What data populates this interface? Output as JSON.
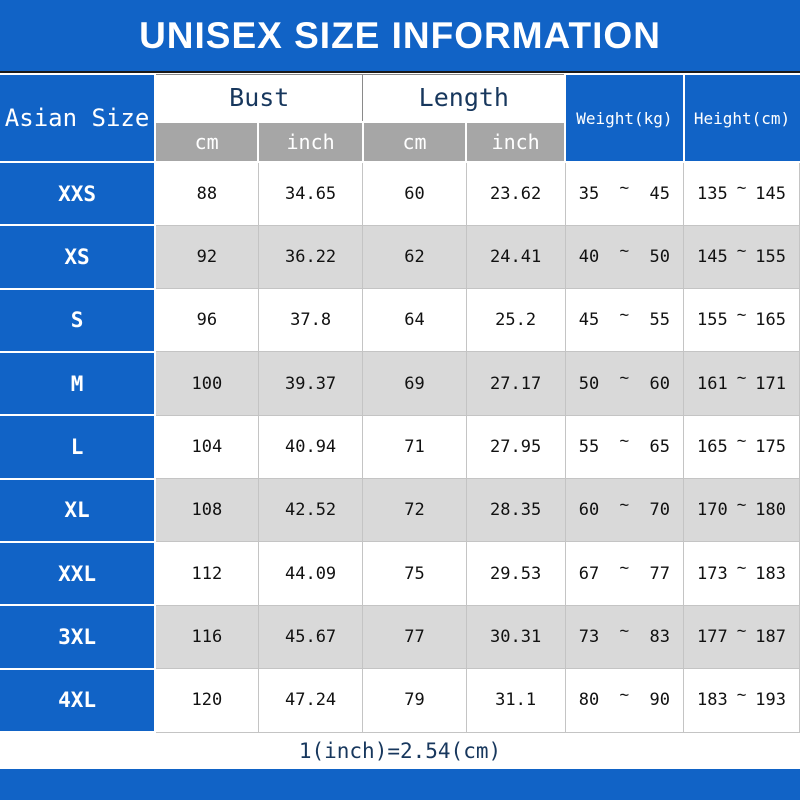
{
  "title": "UNISEX SIZE INFORMATION",
  "footer_note": "1(inch)=2.54(cm)",
  "range_separator": "~",
  "colors": {
    "blue": "#1163c6",
    "row_gray": "#d9d9d9",
    "subheader_gray": "#a6a6a6",
    "header_text": "#17375d"
  },
  "chart_data": {
    "type": "table",
    "title": "UNISEX SIZE INFORMATION",
    "corner_header": "Asian Size",
    "groups": [
      {
        "label": "Bust",
        "sub": [
          "cm",
          "inch"
        ]
      },
      {
        "label": "Length",
        "sub": [
          "cm",
          "inch"
        ]
      }
    ],
    "weight_header": "Weight(kg)",
    "height_header": "Height(cm)",
    "rows": [
      {
        "size": "XXS",
        "bust_cm": "88",
        "bust_inch": "34.65",
        "length_cm": "60",
        "length_inch": "23.62",
        "weight_min": "35",
        "weight_max": "45",
        "height_min": "135",
        "height_max": "145"
      },
      {
        "size": "XS",
        "bust_cm": "92",
        "bust_inch": "36.22",
        "length_cm": "62",
        "length_inch": "24.41",
        "weight_min": "40",
        "weight_max": "50",
        "height_min": "145",
        "height_max": "155"
      },
      {
        "size": "S",
        "bust_cm": "96",
        "bust_inch": "37.8",
        "length_cm": "64",
        "length_inch": "25.2",
        "weight_min": "45",
        "weight_max": "55",
        "height_min": "155",
        "height_max": "165"
      },
      {
        "size": "M",
        "bust_cm": "100",
        "bust_inch": "39.37",
        "length_cm": "69",
        "length_inch": "27.17",
        "weight_min": "50",
        "weight_max": "60",
        "height_min": "161",
        "height_max": "171"
      },
      {
        "size": "L",
        "bust_cm": "104",
        "bust_inch": "40.94",
        "length_cm": "71",
        "length_inch": "27.95",
        "weight_min": "55",
        "weight_max": "65",
        "height_min": "165",
        "height_max": "175"
      },
      {
        "size": "XL",
        "bust_cm": "108",
        "bust_inch": "42.52",
        "length_cm": "72",
        "length_inch": "28.35",
        "weight_min": "60",
        "weight_max": "70",
        "height_min": "170",
        "height_max": "180"
      },
      {
        "size": "XXL",
        "bust_cm": "112",
        "bust_inch": "44.09",
        "length_cm": "75",
        "length_inch": "29.53",
        "weight_min": "67",
        "weight_max": "77",
        "height_min": "173",
        "height_max": "183"
      },
      {
        "size": "3XL",
        "bust_cm": "116",
        "bust_inch": "45.67",
        "length_cm": "77",
        "length_inch": "30.31",
        "weight_min": "73",
        "weight_max": "83",
        "height_min": "177",
        "height_max": "187"
      },
      {
        "size": "4XL",
        "bust_cm": "120",
        "bust_inch": "47.24",
        "length_cm": "79",
        "length_inch": "31.1",
        "weight_min": "80",
        "weight_max": "90",
        "height_min": "183",
        "height_max": "193"
      }
    ]
  }
}
